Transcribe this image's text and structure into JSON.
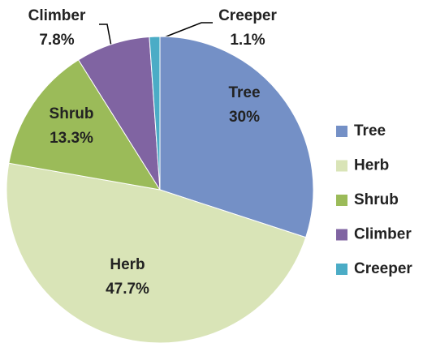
{
  "chart_data": {
    "type": "pie",
    "categories": [
      "Tree",
      "Herb",
      "Shrub",
      "Climber",
      "Creeper"
    ],
    "values": [
      30,
      47.7,
      13.3,
      7.8,
      1.1
    ],
    "value_labels": [
      "30%",
      "47.7%",
      "13.3%",
      "7.8%",
      "1.1%"
    ],
    "colors": [
      "#7490c6",
      "#d9e4b7",
      "#9bbb59",
      "#8064a2",
      "#4bacc6"
    ],
    "legend": "right"
  }
}
